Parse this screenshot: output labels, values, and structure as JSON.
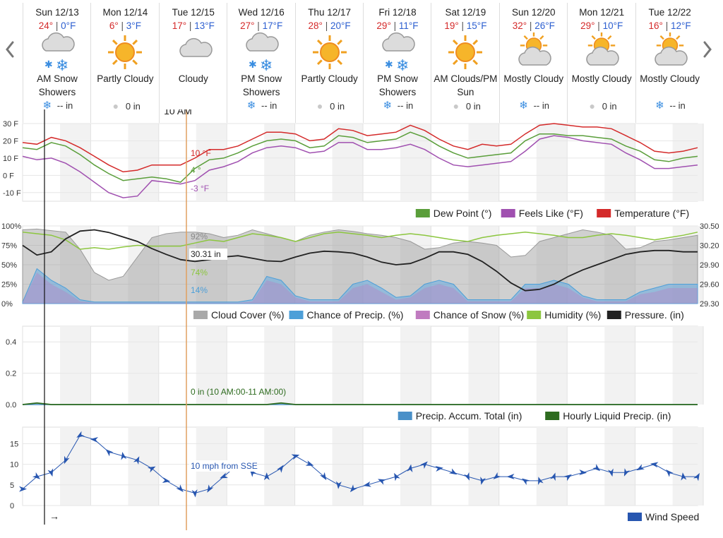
{
  "days": [
    {
      "date": "Sun 12/13",
      "hi": "24°",
      "lo": "0°F",
      "cond": "AM Snow Showers",
      "icon": "snow-cloud-icon",
      "precip_icon": "snowflake-icon",
      "precip": "-- in"
    },
    {
      "date": "Mon 12/14",
      "hi": "6°",
      "lo": "3°F",
      "cond": "Partly Cloudy",
      "icon": "sun-icon",
      "precip_icon": "raindrop-icon",
      "precip": "0 in"
    },
    {
      "date": "Tue 12/15",
      "hi": "17°",
      "lo": "13°F",
      "cond": "Cloudy",
      "icon": "cloud-icon",
      "precip_icon": "",
      "precip": ""
    },
    {
      "date": "Wed 12/16",
      "hi": "27°",
      "lo": "17°F",
      "cond": "PM Snow Showers",
      "icon": "snow-cloud-icon",
      "precip_icon": "snowflake-icon",
      "precip": "-- in"
    },
    {
      "date": "Thu 12/17",
      "hi": "28°",
      "lo": "20°F",
      "cond": "Partly Cloudy",
      "icon": "sun-icon",
      "precip_icon": "raindrop-icon",
      "precip": "0 in"
    },
    {
      "date": "Fri 12/18",
      "hi": "29°",
      "lo": "11°F",
      "cond": "PM Snow Showers",
      "icon": "snow-cloud-icon",
      "precip_icon": "snowflake-icon",
      "precip": "-- in"
    },
    {
      "date": "Sat 12/19",
      "hi": "19°",
      "lo": "15°F",
      "cond": "AM Clouds/PM Sun",
      "icon": "sun-icon",
      "precip_icon": "raindrop-icon",
      "precip": "0 in"
    },
    {
      "date": "Sun 12/20",
      "hi": "32°",
      "lo": "26°F",
      "cond": "Mostly Cloudy",
      "icon": "sun-cloud-icon",
      "precip_icon": "snowflake-icon",
      "precip": "-- in"
    },
    {
      "date": "Mon 12/21",
      "hi": "29°",
      "lo": "10°F",
      "cond": "Mostly Cloudy",
      "icon": "sun-cloud-icon",
      "precip_icon": "raindrop-icon",
      "precip": "0 in"
    },
    {
      "date": "Tue 12/22",
      "hi": "16°",
      "lo": "12°F",
      "cond": "Mostly Cloudy",
      "icon": "sun-cloud-icon",
      "precip_icon": "snowflake-icon",
      "precip": "-- in"
    }
  ],
  "cursor_time": "10 AM",
  "colors": {
    "temperature": "#d42a2a",
    "feels_like": "#a050b0",
    "dew_point": "#5a9e3a",
    "cloud": "#a9a9a9",
    "precip_chance": "#4d9fd8",
    "snow_chance": "#c07bc0",
    "humidity": "#8cc63f",
    "pressure": "#222222",
    "accum": "#4a90c8",
    "hourly_precip": "#2e6b1f",
    "wind": "#2756b0",
    "cursor": "#e0a060"
  },
  "chart_data": [
    {
      "type": "line",
      "id": "temp",
      "yticks": [
        "30 F",
        "20 F",
        "10 F",
        "0 F",
        "-10 F"
      ],
      "ylim": [
        -15,
        30
      ],
      "days": 10,
      "series": [
        {
          "name": "Temperature (°F)",
          "values": [
            19,
            18,
            22,
            20,
            16,
            11,
            6,
            2,
            3,
            6,
            6,
            6,
            10,
            15,
            15,
            17,
            21,
            25,
            25,
            24,
            20,
            21,
            27,
            26,
            23,
            24,
            25,
            29,
            26,
            21,
            17,
            15,
            18,
            17,
            18,
            24,
            29,
            30,
            29,
            28,
            28,
            27,
            23,
            19,
            14,
            13,
            14,
            16
          ]
        },
        {
          "name": "Dew Point (°)",
          "values": [
            16,
            15,
            19,
            17,
            12,
            6,
            1,
            -3,
            -2,
            -1,
            -2,
            -4,
            4,
            9,
            10,
            13,
            17,
            20,
            21,
            20,
            16,
            17,
            23,
            22,
            19,
            20,
            21,
            25,
            22,
            17,
            13,
            10,
            11,
            12,
            13,
            20,
            24,
            24,
            23,
            23,
            22,
            21,
            17,
            14,
            9,
            8,
            10,
            11
          ]
        },
        {
          "name": "Feels Like (°F)",
          "values": [
            11,
            9,
            10,
            7,
            2,
            -4,
            -10,
            -13,
            -12,
            -3,
            -4,
            -5,
            -3,
            3,
            5,
            8,
            13,
            16,
            17,
            16,
            13,
            14,
            19,
            19,
            15,
            15,
            16,
            18,
            15,
            10,
            6,
            5,
            6,
            7,
            8,
            14,
            21,
            23,
            22,
            20,
            19,
            18,
            13,
            9,
            4,
            4,
            5,
            6
          ]
        }
      ],
      "cursor_labels": [
        "10 °F",
        "4 °",
        "-3 °F"
      ]
    },
    {
      "type": "area",
      "id": "clouds",
      "yticks_left": [
        "100%",
        "75%",
        "50%",
        "25%",
        "0%"
      ],
      "yticks_right": [
        "30.50",
        "30.20",
        "29.90",
        "29.60",
        "29.30"
      ],
      "ylim_left": [
        0,
        100
      ],
      "ylim_right": [
        29.3,
        30.5
      ],
      "series": [
        {
          "name": "Cloud Cover (%)",
          "values": [
            95,
            96,
            94,
            92,
            70,
            40,
            30,
            35,
            60,
            85,
            90,
            92,
            92,
            90,
            85,
            88,
            95,
            90,
            85,
            80,
            88,
            92,
            95,
            93,
            90,
            88,
            85,
            80,
            70,
            72,
            78,
            80,
            78,
            75,
            60,
            62,
            80,
            85,
            90,
            95,
            92,
            88,
            70,
            72,
            80,
            82,
            85,
            88
          ]
        },
        {
          "name": "Chance of Precip. (%)",
          "values": [
            2,
            45,
            30,
            20,
            5,
            2,
            2,
            2,
            2,
            2,
            2,
            2,
            2,
            2,
            2,
            2,
            5,
            35,
            30,
            10,
            5,
            5,
            5,
            25,
            30,
            20,
            8,
            10,
            25,
            30,
            25,
            5,
            5,
            5,
            5,
            25,
            25,
            30,
            25,
            10,
            5,
            5,
            5,
            15,
            20,
            25,
            25,
            25
          ]
        },
        {
          "name": "Chance of Snow (%)",
          "values": [
            2,
            40,
            25,
            15,
            3,
            1,
            1,
            1,
            1,
            1,
            1,
            1,
            1,
            1,
            1,
            1,
            3,
            30,
            25,
            8,
            3,
            3,
            3,
            20,
            25,
            15,
            5,
            8,
            20,
            25,
            20,
            3,
            3,
            3,
            3,
            20,
            20,
            25,
            20,
            8,
            3,
            3,
            3,
            12,
            15,
            20,
            20,
            20
          ]
        },
        {
          "name": "Humidity (%)",
          "values": [
            92,
            90,
            88,
            82,
            70,
            72,
            70,
            73,
            75,
            74,
            74,
            74,
            78,
            82,
            80,
            85,
            90,
            88,
            85,
            80,
            85,
            90,
            92,
            90,
            88,
            85,
            88,
            90,
            88,
            85,
            82,
            80,
            85,
            88,
            90,
            92,
            90,
            88,
            85,
            85,
            88,
            90,
            88,
            85,
            82,
            85,
            88,
            92
          ]
        },
        {
          "name": "Pressure. (in)",
          "values": [
            30.2,
            30.05,
            30.1,
            30.3,
            30.42,
            30.44,
            30.4,
            30.33,
            30.26,
            30.15,
            30.06,
            29.98,
            29.95,
            29.98,
            30.02,
            30.04,
            30.0,
            29.96,
            29.95,
            30.02,
            30.08,
            30.11,
            30.1,
            30.08,
            30.02,
            29.94,
            29.9,
            29.92,
            30.0,
            30.1,
            30.1,
            30.06,
            29.95,
            29.8,
            29.62,
            29.5,
            29.52,
            29.6,
            29.72,
            29.82,
            29.9,
            29.98,
            30.06,
            30.1,
            30.12,
            30.12,
            30.1,
            30.1
          ]
        }
      ],
      "cursor_labels": [
        "92%",
        "30.31 in",
        "74%",
        "14%"
      ]
    },
    {
      "type": "line",
      "id": "precip",
      "yticks": [
        "0.4",
        "0.2",
        "0.0"
      ],
      "ylim": [
        0,
        0.5
      ],
      "series": [
        {
          "name": "Precip. Accum. Total (in)",
          "values": [
            0,
            0,
            0,
            0,
            0,
            0,
            0,
            0,
            0,
            0,
            0,
            0,
            0,
            0,
            0,
            0,
            0,
            0,
            0,
            0,
            0,
            0,
            0,
            0,
            0,
            0,
            0,
            0,
            0,
            0,
            0,
            0,
            0,
            0,
            0,
            0,
            0,
            0,
            0,
            0,
            0,
            0,
            0,
            0,
            0,
            0,
            0,
            0
          ]
        },
        {
          "name": "Hourly Liquid Precip. (in)",
          "values": [
            0,
            0.01,
            0,
            0,
            0,
            0,
            0,
            0,
            0,
            0,
            0,
            0,
            0,
            0,
            0,
            0,
            0,
            0,
            0.01,
            0,
            0,
            0,
            0,
            0,
            0,
            0,
            0,
            0,
            0,
            0,
            0,
            0,
            0,
            0,
            0,
            0,
            0,
            0,
            0,
            0,
            0,
            0,
            0,
            0,
            0,
            0,
            0,
            0
          ]
        }
      ],
      "cursor_label": "0 in (10 AM:00-11 AM:00)"
    },
    {
      "type": "line",
      "id": "wind",
      "yticks": [
        "15",
        "10",
        "5",
        "0"
      ],
      "ylim": [
        0,
        19
      ],
      "series": [
        {
          "name": "Wind Speed",
          "values": [
            4,
            7,
            8,
            11,
            17,
            16,
            13,
            12,
            11,
            9,
            6,
            4,
            3,
            4,
            7,
            10,
            8,
            7,
            9,
            12,
            10,
            7,
            5,
            4,
            5,
            6,
            7,
            9,
            10,
            9,
            8,
            7,
            6,
            7,
            7,
            6,
            6,
            7,
            7,
            8,
            9,
            8,
            8,
            9,
            10,
            8,
            7,
            7
          ]
        }
      ],
      "cursor_label": "10 mph from SSE"
    }
  ],
  "legends": {
    "temp": [
      "Dew Point (°)",
      "Feels Like (°F)",
      "Temperature (°F)"
    ],
    "clouds": [
      "Cloud Cover (%)",
      "Chance of Precip. (%)",
      "Chance of Snow (%)",
      "Humidity (%)",
      "Pressure. (in)"
    ],
    "precip": [
      "Precip. Accum. Total (in)",
      "Hourly Liquid Precip. (in)"
    ],
    "wind": [
      "Wind Speed"
    ]
  },
  "arrow_glyph": "→"
}
